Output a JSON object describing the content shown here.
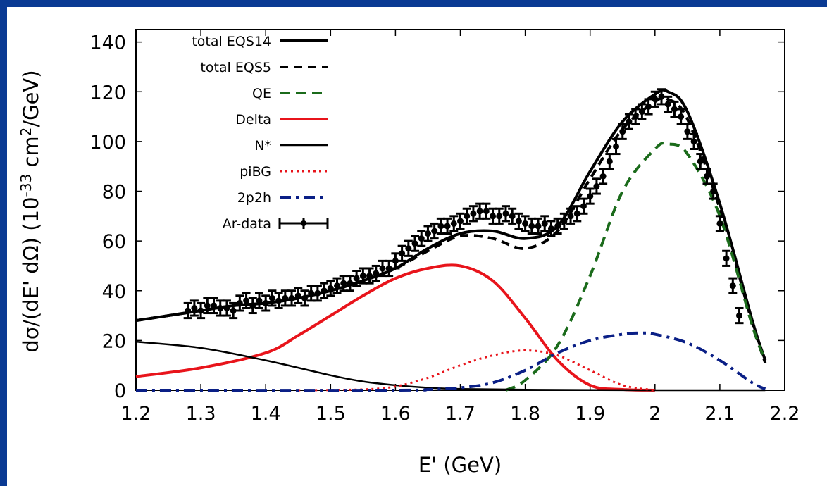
{
  "colors": {
    "page_border": "#0a3a93",
    "total": "#000000",
    "qe": "#1b6b1b",
    "delta": "#e8141b",
    "nstar": "#000000",
    "pibg": "#e8141b",
    "twop2h": "#0a1f86",
    "data": "#000000"
  },
  "chart_data": {
    "type": "line",
    "title": "",
    "xlabel": "E' (GeV)",
    "ylabel_parts": {
      "prefix": "dσ/(dE' dΩ) (10",
      "exponent": "-33",
      "middle": " cm",
      "exponent2": "2",
      "suffix": "/GeV)"
    },
    "xlim": [
      1.2,
      2.2
    ],
    "ylim": [
      0,
      145
    ],
    "x_ticks": [
      1.2,
      1.3,
      1.4,
      1.5,
      1.6,
      1.7,
      1.8,
      1.9,
      2.0,
      2.1,
      2.2
    ],
    "x_tick_labels": [
      "1.2",
      "1.3",
      "1.4",
      "1.5",
      "1.6",
      "1.7",
      "1.8",
      "1.9",
      "2",
      "2.1",
      "2.2"
    ],
    "y_ticks": [
      0,
      20,
      40,
      60,
      80,
      100,
      120,
      140
    ],
    "y_tick_labels": [
      "0",
      "20",
      "40",
      "60",
      "80",
      "100",
      "120",
      "140"
    ],
    "grid": false,
    "legend_position": "top-left",
    "series": [
      {
        "name": "total EQS14",
        "style": "solid-thick",
        "x": [
          1.2,
          1.25,
          1.3,
          1.35,
          1.4,
          1.45,
          1.5,
          1.55,
          1.6,
          1.65,
          1.7,
          1.75,
          1.8,
          1.85,
          1.9,
          1.95,
          2.0,
          2.02,
          2.05,
          2.1,
          2.15,
          2.17
        ],
        "y": [
          28,
          30,
          32,
          34,
          35,
          37,
          40,
          44,
          49,
          57,
          63,
          64,
          61,
          66,
          88,
          108,
          119,
          120,
          112,
          75,
          28,
          12
        ]
      },
      {
        "name": "total EQS5",
        "style": "dashed-thick",
        "x": [
          1.2,
          1.25,
          1.3,
          1.35,
          1.4,
          1.45,
          1.5,
          1.55,
          1.6,
          1.65,
          1.7,
          1.75,
          1.8,
          1.85,
          1.9,
          1.95,
          2.0,
          2.02,
          2.05,
          2.1,
          2.15,
          2.17
        ],
        "y": [
          28,
          30,
          32,
          34,
          35,
          37,
          40,
          44,
          49,
          56,
          62,
          61,
          57,
          64,
          85,
          105,
          116,
          117,
          109,
          73,
          27,
          11
        ]
      },
      {
        "name": "QE",
        "style": "dashed",
        "x": [
          1.77,
          1.8,
          1.85,
          1.9,
          1.95,
          2.0,
          2.02,
          2.05,
          2.1,
          2.15,
          2.17
        ],
        "y": [
          0,
          4,
          18,
          46,
          80,
          97,
          99,
          95,
          70,
          26,
          12
        ]
      },
      {
        "name": "Delta",
        "style": "solid",
        "x": [
          1.2,
          1.3,
          1.4,
          1.45,
          1.5,
          1.55,
          1.6,
          1.65,
          1.7,
          1.75,
          1.8,
          1.85,
          1.9,
          1.95,
          2.0
        ],
        "y": [
          5.5,
          9,
          15,
          22,
          30,
          38,
          45,
          49,
          50,
          44,
          29,
          12,
          2,
          0.3,
          0
        ]
      },
      {
        "name": "N*",
        "style": "solid",
        "x": [
          1.2,
          1.3,
          1.4,
          1.5,
          1.55,
          1.6,
          1.65,
          1.7,
          1.8,
          2.0,
          2.17
        ],
        "y": [
          19.5,
          17,
          12,
          6,
          3.5,
          2,
          1,
          0.5,
          0.2,
          0,
          0
        ]
      },
      {
        "name": "piBG",
        "style": "dotted",
        "x": [
          1.45,
          1.55,
          1.6,
          1.65,
          1.7,
          1.75,
          1.8,
          1.85,
          1.9,
          1.95,
          2.0
        ],
        "y": [
          0,
          0.3,
          1.5,
          5,
          10,
          14,
          16,
          14,
          8,
          2,
          0
        ]
      },
      {
        "name": "2p2h",
        "style": "dashdot",
        "x": [
          1.2,
          1.6,
          1.65,
          1.7,
          1.75,
          1.8,
          1.85,
          1.9,
          1.95,
          1.98,
          2.0,
          2.05,
          2.1,
          2.15,
          2.17
        ],
        "y": [
          0,
          0,
          0.3,
          1,
          3,
          8,
          15,
          20,
          22.5,
          23,
          22.5,
          19,
          12,
          3,
          0.5
        ]
      }
    ],
    "data_series": {
      "name": "Ar-data",
      "error": 3,
      "x": [
        1.28,
        1.29,
        1.3,
        1.31,
        1.32,
        1.33,
        1.34,
        1.35,
        1.36,
        1.37,
        1.38,
        1.39,
        1.4,
        1.41,
        1.42,
        1.43,
        1.44,
        1.45,
        1.46,
        1.47,
        1.48,
        1.49,
        1.5,
        1.51,
        1.52,
        1.53,
        1.54,
        1.55,
        1.56,
        1.57,
        1.58,
        1.59,
        1.6,
        1.61,
        1.62,
        1.63,
        1.64,
        1.65,
        1.66,
        1.67,
        1.68,
        1.69,
        1.7,
        1.71,
        1.72,
        1.73,
        1.74,
        1.75,
        1.76,
        1.77,
        1.78,
        1.79,
        1.8,
        1.81,
        1.82,
        1.83,
        1.84,
        1.85,
        1.86,
        1.87,
        1.88,
        1.89,
        1.9,
        1.91,
        1.92,
        1.93,
        1.94,
        1.95,
        1.96,
        1.97,
        1.98,
        1.99,
        2.0,
        2.01,
        2.02,
        2.03,
        2.04,
        2.05,
        2.06,
        2.07,
        2.08,
        2.09,
        2.1,
        2.11,
        2.12,
        2.13
      ],
      "y": [
        32,
        33,
        32,
        34,
        34,
        33,
        33,
        32,
        35,
        36,
        34,
        36,
        35,
        37,
        36,
        37,
        37,
        38,
        37,
        39,
        39,
        40,
        41,
        42,
        43,
        43,
        45,
        46,
        46,
        47,
        49,
        49,
        52,
        55,
        57,
        59,
        61,
        63,
        64,
        66,
        66,
        67,
        68,
        70,
        71,
        72,
        72,
        70,
        70,
        71,
        70,
        68,
        67,
        66,
        66,
        67,
        65,
        66,
        68,
        70,
        71,
        74,
        78,
        82,
        86,
        92,
        98,
        104,
        108,
        110,
        112,
        114,
        117,
        118,
        115,
        113,
        110,
        104,
        100,
        92,
        86,
        80,
        67,
        53,
        42,
        30
      ]
    }
  }
}
